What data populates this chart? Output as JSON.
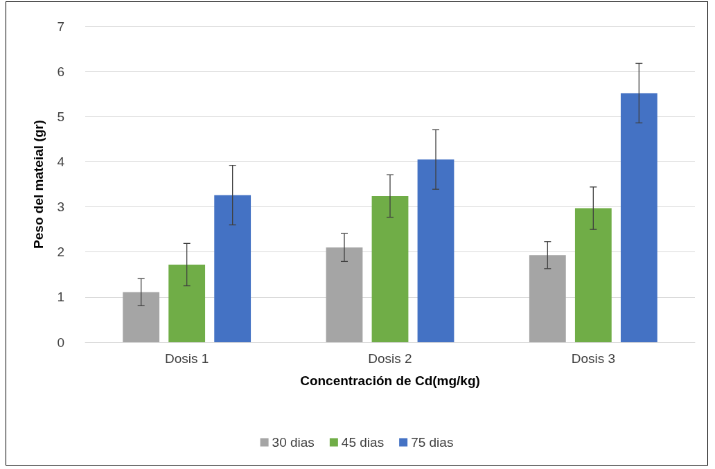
{
  "chart_data": {
    "type": "bar",
    "xlabel": "Concentración de Cd(mg/kg)",
    "ylabel": "Peso del mateial (gr)",
    "categories": [
      "Dosis 1",
      "Dosis 2",
      "Dosis 3"
    ],
    "series": [
      {
        "name": "30 dias",
        "color": "#a5a5a5",
        "values": [
          1.11,
          2.1,
          1.93
        ],
        "errors": [
          0.3,
          0.31,
          0.3
        ]
      },
      {
        "name": "45 dias",
        "color": "#70ad47",
        "values": [
          1.72,
          3.24,
          2.97
        ],
        "errors": [
          0.47,
          0.47,
          0.47
        ]
      },
      {
        "name": "75 dias",
        "color": "#4472c4",
        "values": [
          3.26,
          4.05,
          5.52
        ],
        "errors": [
          0.66,
          0.66,
          0.66
        ]
      }
    ],
    "ylim": [
      0,
      7
    ],
    "yticks": [
      0,
      1,
      2,
      3,
      4,
      5,
      6,
      7
    ],
    "grid": "y",
    "legend": "bottom"
  }
}
